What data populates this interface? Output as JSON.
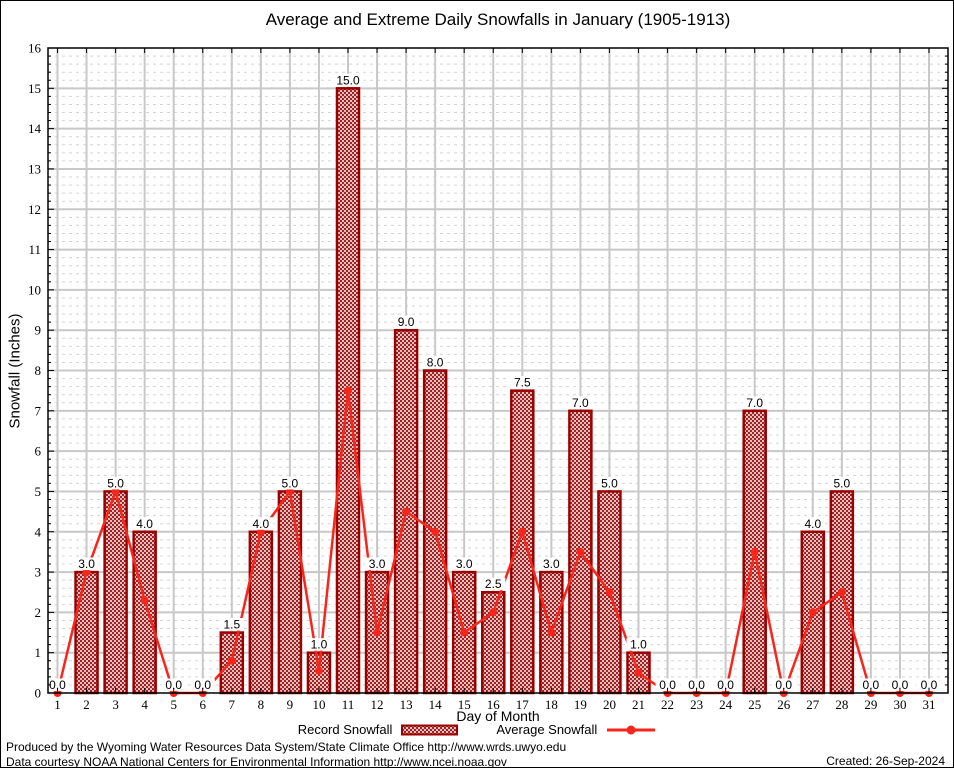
{
  "chart_data": {
    "type": "bar",
    "title": "Average and Extreme Daily Snowfalls in January (1905-1913)",
    "xlabel": "Day of Month",
    "ylabel": "Snowfall (Inches)",
    "categories": [
      1,
      2,
      3,
      4,
      5,
      6,
      7,
      8,
      9,
      10,
      11,
      12,
      13,
      14,
      15,
      16,
      17,
      18,
      19,
      20,
      21,
      22,
      23,
      24,
      25,
      26,
      27,
      28,
      29,
      30,
      31
    ],
    "series": [
      {
        "name": "Record Snowfall",
        "type": "bar",
        "values": [
          0.0,
          3.0,
          5.0,
          4.0,
          0.0,
          0.0,
          1.5,
          4.0,
          5.0,
          1.0,
          15.0,
          3.0,
          9.0,
          8.0,
          3.0,
          2.5,
          7.5,
          3.0,
          7.0,
          5.0,
          1.0,
          0.0,
          0.0,
          0.0,
          7.0,
          0.0,
          4.0,
          5.0,
          0.0,
          0.0,
          0.0
        ]
      },
      {
        "name": "Average Snowfall",
        "type": "line",
        "values": [
          0.0,
          3.0,
          5.0,
          2.3,
          0.0,
          0.0,
          0.8,
          4.0,
          5.0,
          0.55,
          7.5,
          1.5,
          4.5,
          4.0,
          1.5,
          2.0,
          4.0,
          1.5,
          3.5,
          2.5,
          0.5,
          0.0,
          0.0,
          0.0,
          3.5,
          0.0,
          2.0,
          2.5,
          0.0,
          0.0,
          0.0
        ]
      }
    ],
    "ylim": [
      0,
      16
    ],
    "ytick_step": 1,
    "yminor_step": 0.2,
    "grid": true,
    "bar_value_labels": true,
    "legend_position": "bottom"
  },
  "footer": {
    "line1": "Produced by the Wyoming Water Resources Data System/State Climate Office http://www.wrds.uwyo.edu",
    "line2": "Data courtesy NOAA National Centers for Environmental Information http://www.ncei.noaa.gov",
    "created": "Created: 26-Sep-2024"
  },
  "colors": {
    "bar_border": "#9a0000",
    "bar_hatch": "#9a1010",
    "line": "#fa251a",
    "grid_major": "#c8c8c8",
    "grid_minor": "#d4d4d4",
    "axis": "#000000",
    "label_bg": "#ffffff",
    "text": "#000000",
    "background": "#ffffff"
  }
}
